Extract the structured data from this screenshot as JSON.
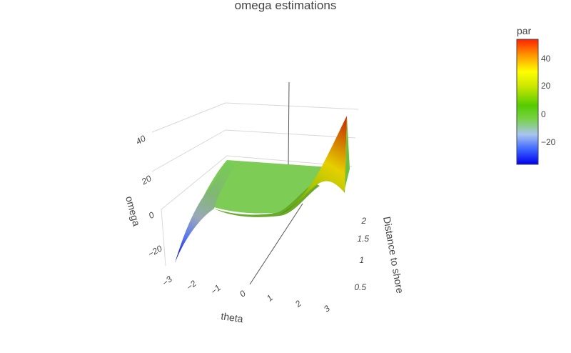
{
  "chart_data": {
    "type": "surface",
    "title": "omega estimations",
    "x_axis": {
      "label": "theta",
      "range": [
        -3,
        3
      ],
      "ticks": [
        "−3",
        "−2",
        "−1",
        "0",
        "1",
        "2",
        "3"
      ]
    },
    "y_axis": {
      "label": "Distance to shore",
      "range": [
        0.5,
        2
      ],
      "ticks": [
        "0.5",
        "1",
        "1.5",
        "2"
      ]
    },
    "z_axis": {
      "label": "omega",
      "range": [
        -30,
        50
      ],
      "ticks": [
        "−20",
        "0",
        "20",
        "40"
      ]
    },
    "colorbar": {
      "title": "par",
      "range": [
        -35,
        52
      ],
      "ticks": [
        "−20",
        "0",
        "20",
        "40"
      ],
      "colorscale": [
        "#0000ee",
        "#3c66ff",
        "#a9c6ee",
        "#78d24a",
        "#55cc00",
        "#c8e600",
        "#ffff00",
        "#ff9900",
        "#ff2200"
      ]
    },
    "surface_description": "omega = theta^3 * distance style surface; min ≈ -32 at theta=-3, max ≈ 52 at theta=3, distance=2",
    "corners": {
      "theta_-3": {
        "omega_at_far": -32,
        "omega_at_near": -30
      },
      "theta_3": {
        "omega_at_far": 52,
        "omega_at_near": 2
      }
    }
  }
}
